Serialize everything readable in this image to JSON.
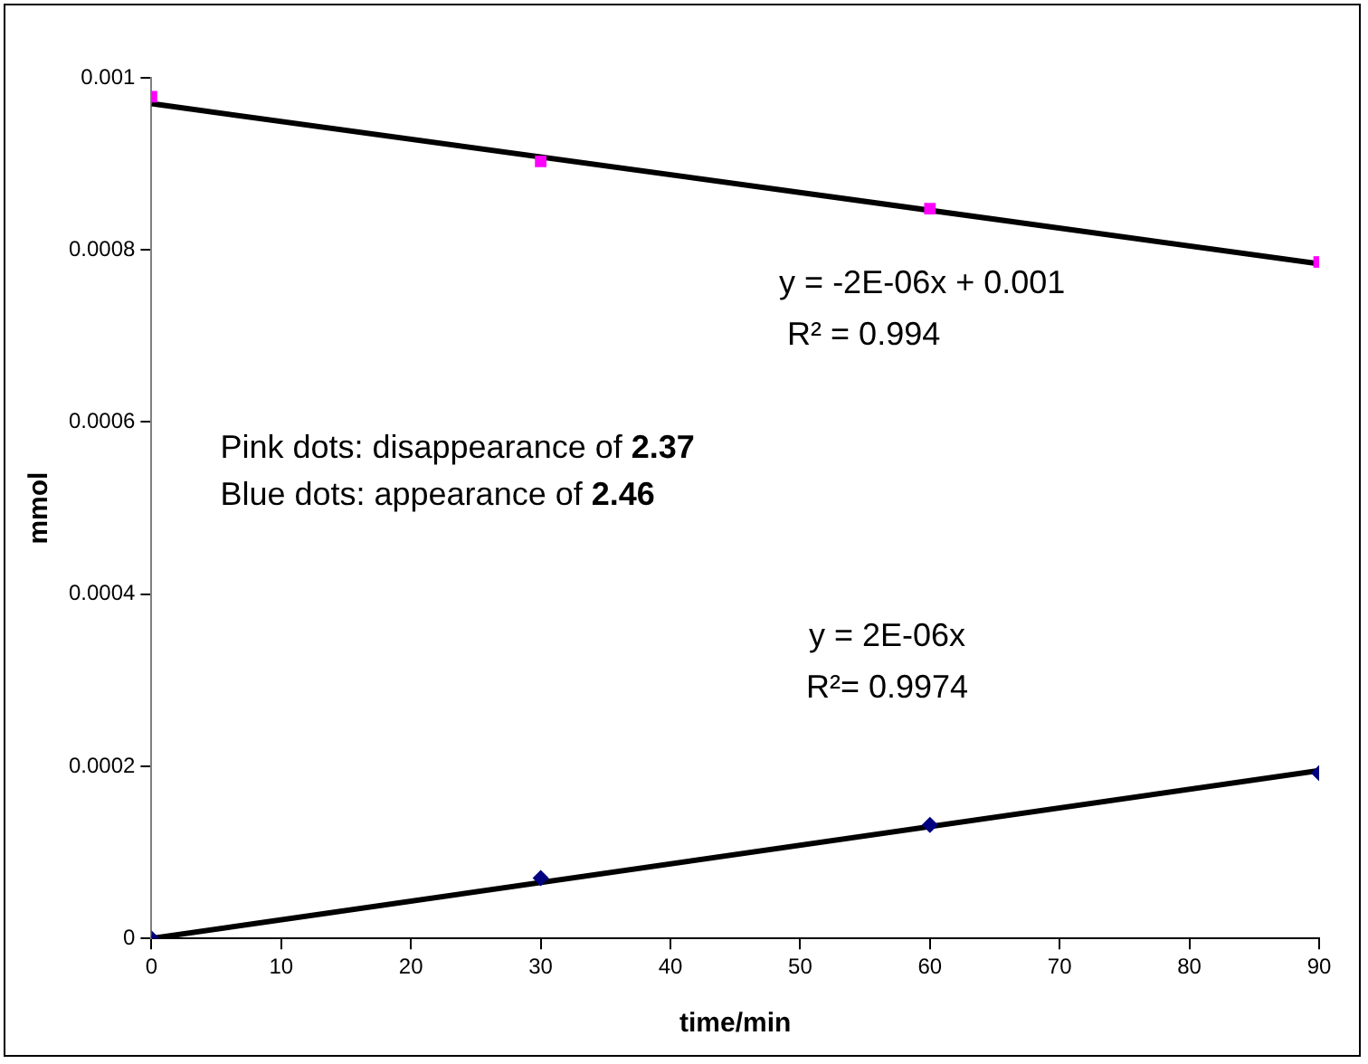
{
  "chart_data": {
    "type": "scatter",
    "xlabel": "time/min",
    "ylabel": "mmol",
    "xlim": [
      0,
      90
    ],
    "xticks": [
      0,
      10,
      20,
      30,
      40,
      50,
      60,
      70,
      80,
      90
    ],
    "ylim": [
      0,
      0.001
    ],
    "yticks": [
      0,
      0.0002,
      0.0004,
      0.0006,
      0.0008,
      0.001
    ],
    "grid": false,
    "legend": false,
    "series": [
      {
        "marker": "square",
        "color": "#ff00ff",
        "x": [
          0,
          30,
          60,
          90
        ],
        "values": [
          0.000978,
          0.000903,
          0.000848,
          0.000786
        ]
      },
      {
        "marker": "diamond",
        "color": "#000080",
        "x": [
          0,
          30,
          60,
          90
        ],
        "values": [
          0,
          7e-05,
          0.000132,
          0.000192
        ]
      },
      {
        "type": "line",
        "marker": "none",
        "color": "#000000",
        "x": [
          0,
          90
        ],
        "values": [
          0.00097,
          0.000784
        ]
      },
      {
        "type": "line",
        "marker": "none",
        "color": "#000000",
        "x": [
          0,
          90
        ],
        "values": [
          0,
          0.000195
        ]
      }
    ],
    "annotations": [
      "y = -2E-06x + 0.001",
      "R² = 0.994",
      "y = 2E-06x",
      "R²= 0.9974",
      "Pink dots: disappearance of 2.37",
      "Blue dots: appearance of 2.46"
    ]
  }
}
